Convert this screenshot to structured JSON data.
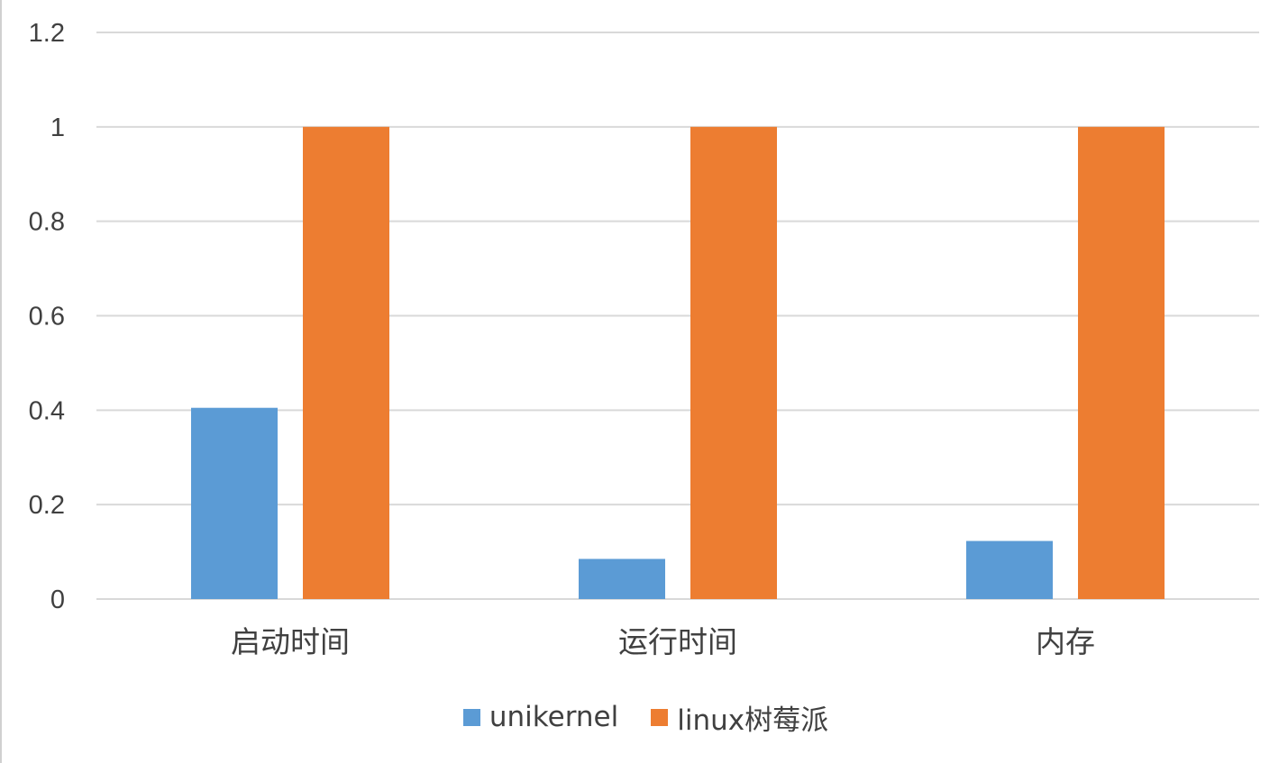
{
  "chart_data": {
    "type": "bar",
    "categories": [
      "启动时间",
      "运行时间",
      "内存"
    ],
    "series": [
      {
        "name": "unikernel",
        "values": [
          0.405,
          0.085,
          0.123
        ],
        "color": "#5b9bd5"
      },
      {
        "name": "linux树莓派",
        "values": [
          1.0,
          1.0,
          1.0
        ],
        "color": "#ed7d31"
      }
    ],
    "yticks": [
      "0",
      "0.2",
      "0.4",
      "0.6",
      "0.8",
      "1",
      "1.2"
    ],
    "ylim": [
      0,
      1.2
    ],
    "grid": true,
    "legend_position": "bottom",
    "title": "",
    "xlabel": "",
    "ylabel": ""
  }
}
